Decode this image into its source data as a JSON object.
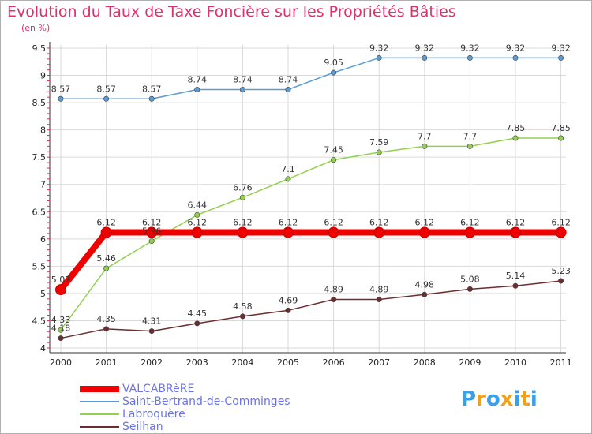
{
  "title": "Evolution du Taux de Taxe Foncière sur les Propriétés Bâties",
  "subtitle": "(en %)",
  "logo": [
    "P",
    "r",
    "o",
    "x",
    "i",
    "t",
    "i"
  ],
  "logo_colors": [
    "#3aa0e8",
    "#f0a020",
    "#3aa0e8",
    "#f0a020",
    "#3aa0e8",
    "#f0a020",
    "#3aa0e8"
  ],
  "colors": {
    "title": "#e0306a",
    "legend_text": "#6b73e8",
    "grid": "#d9d9d9"
  },
  "chart_data": {
    "type": "line",
    "title": "Evolution du Taux de Taxe Foncière sur les Propriétés Bâties",
    "ylabel": "(en %)",
    "x": [
      "2000",
      "2001",
      "2002",
      "2003",
      "2004",
      "2005",
      "2006",
      "2007",
      "2008",
      "2009",
      "2010",
      "2011"
    ],
    "ylim": [
      4,
      9.5
    ],
    "yticks": [
      "4",
      "4.5",
      "5",
      "5.5",
      "6",
      "6.5",
      "7",
      "7.5",
      "8",
      "8.5",
      "9",
      "9.5"
    ],
    "grid": true,
    "legend_position": "bottom-left",
    "series": [
      {
        "name": "VALCABRèRE",
        "color": "#ee0000",
        "labels": [
          "5.07",
          "6.12",
          "6.12",
          "6.12",
          "6.12",
          "6.12",
          "6.12",
          "6.12",
          "6.12",
          "6.12",
          "6.12",
          "6.12"
        ],
        "values": [
          5.07,
          6.12,
          6.12,
          6.12,
          6.12,
          6.12,
          6.12,
          6.12,
          6.12,
          6.12,
          6.12,
          6.12
        ]
      },
      {
        "name": "Saint-Bertrand-de-Comminges",
        "color": "#5b9bd5",
        "labels": [
          "8.57",
          "8.57",
          "8.57",
          "8.74",
          "8.74",
          "8.74",
          "9.05",
          "9.32",
          "9.32",
          "9.32",
          "9.32",
          "9.32"
        ],
        "values": [
          8.57,
          8.57,
          8.57,
          8.74,
          8.74,
          8.74,
          9.05,
          9.32,
          9.32,
          9.32,
          9.32,
          9.32
        ]
      },
      {
        "name": "Labroquère",
        "color": "#92d050",
        "labels": [
          "4.33",
          "5.46",
          "5.96",
          "6.44",
          "6.76",
          "7.1",
          "7.45",
          "7.59",
          "7.7",
          "7.7",
          "7.85",
          "7.85"
        ],
        "values": [
          4.33,
          5.46,
          5.96,
          6.44,
          6.76,
          7.1,
          7.45,
          7.59,
          7.7,
          7.7,
          7.85,
          7.85
        ]
      },
      {
        "name": "Seilhan",
        "color": "#6b2e2e",
        "labels": [
          "4.18",
          "4.35",
          "4.31",
          "4.45",
          "4.58",
          "4.69",
          "4.89",
          "4.89",
          "4.98",
          "5.08",
          "5.14",
          "5.23"
        ],
        "values": [
          4.18,
          4.35,
          4.31,
          4.45,
          4.58,
          4.69,
          4.89,
          4.89,
          4.98,
          5.08,
          5.14,
          5.23
        ]
      }
    ]
  }
}
